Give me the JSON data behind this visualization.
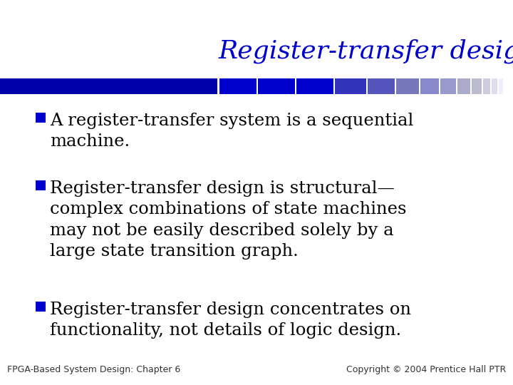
{
  "title": "Register-transfer design",
  "title_color": "#0000CC",
  "title_fontsize": 26,
  "title_font": "serif",
  "background_color": "#FFFFFF",
  "bullet_points": [
    "A register-transfer system is a sequential\nmachine.",
    "Register-transfer design is structural—\ncomplex combinations of state machines\nmay not be easily described solely by a\nlarge state transition graph.",
    "Register-transfer design concentrates on\nfunctionality, not details of logic design."
  ],
  "bullet_color": "#0000CC",
  "bullet_fontsize": 17.5,
  "bullet_font": "serif",
  "footer_left": "FPGA-Based System Design: Chapter 6",
  "footer_right": "Copyright © 2004 Prentice Hall PTR",
  "footer_fontsize": 9,
  "footer_color": "#333333",
  "bar_colors": [
    "#0000BB",
    "#0000BB",
    "#0000BB",
    "#0000BB",
    "#2222DD",
    "#2222DD",
    "#2222DD",
    "#5555CC",
    "#7777CC",
    "#9999CC",
    "#AAAACC",
    "#BBBBCC",
    "#CCCCDD",
    "#DDDDEE"
  ],
  "dark_blue": "#0000AA"
}
